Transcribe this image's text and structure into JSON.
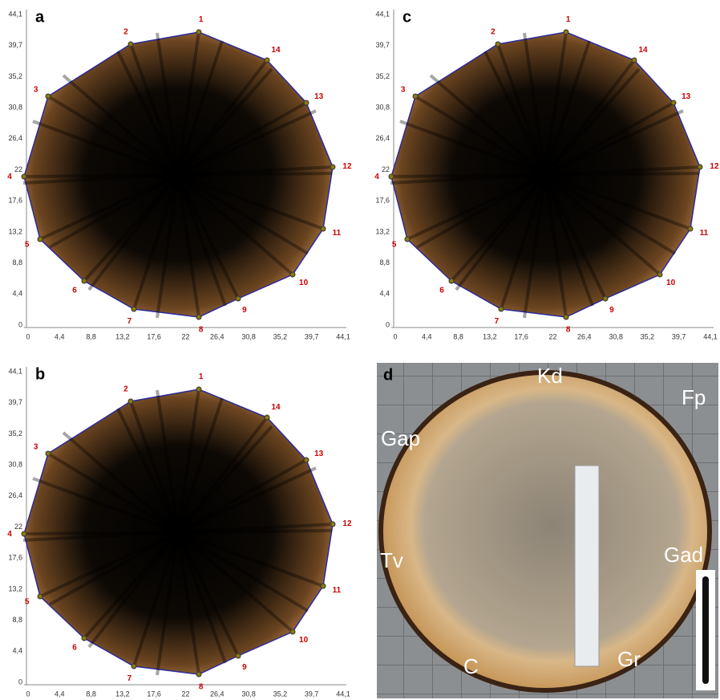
{
  "panels": [
    {
      "label": "a",
      "y_ticks": [
        "44,1",
        "39,7",
        "35,2",
        "30,8",
        "26,4",
        "22",
        "17,6",
        "13,2",
        "8,8",
        "4,4",
        "0"
      ],
      "x_ticks": [
        "0",
        "4,4",
        "8,8",
        "13,2",
        "17,6",
        "22",
        "26,4",
        "30,8",
        "35,2",
        "39,7",
        "44,1"
      ],
      "sensors": [
        "1",
        "2",
        "3",
        "4",
        "5",
        "6",
        "7",
        "8",
        "9",
        "10",
        "11",
        "12",
        "13",
        "14"
      ]
    },
    {
      "label": "c",
      "y_ticks": [
        "44,1",
        "39,7",
        "35,2",
        "30,8",
        "26,4",
        "22",
        "17,6",
        "13,2",
        "8,8",
        "4,4",
        "0"
      ],
      "x_ticks": [
        "0",
        "4,4",
        "8,8",
        "13,2",
        "17,6",
        "22",
        "26,4",
        "30,8",
        "35,2",
        "39,7",
        "44,1"
      ],
      "sensors": [
        "1",
        "2",
        "3",
        "4",
        "5",
        "6",
        "7",
        "8",
        "9",
        "10",
        "11",
        "12",
        "13",
        "14"
      ]
    },
    {
      "label": "b",
      "y_ticks": [
        "44,1",
        "39,7",
        "35,2",
        "30,8",
        "26,4",
        "22",
        "17,6",
        "13,2",
        "8,8",
        "4,4",
        "0"
      ],
      "x_ticks": [
        "0",
        "4,4",
        "8,8",
        "13,2",
        "17,6",
        "22",
        "26,4",
        "30,8",
        "35,2",
        "39,7",
        "44,1"
      ],
      "sensors": [
        "1",
        "2",
        "3",
        "4",
        "5",
        "6",
        "7",
        "8",
        "9",
        "10",
        "11",
        "12",
        "13",
        "14"
      ]
    },
    {
      "label": "d",
      "photo_labels": [
        "Kd",
        "Fp",
        "Gap",
        "Tv",
        "Gad",
        "C",
        "Gr"
      ]
    }
  ]
}
